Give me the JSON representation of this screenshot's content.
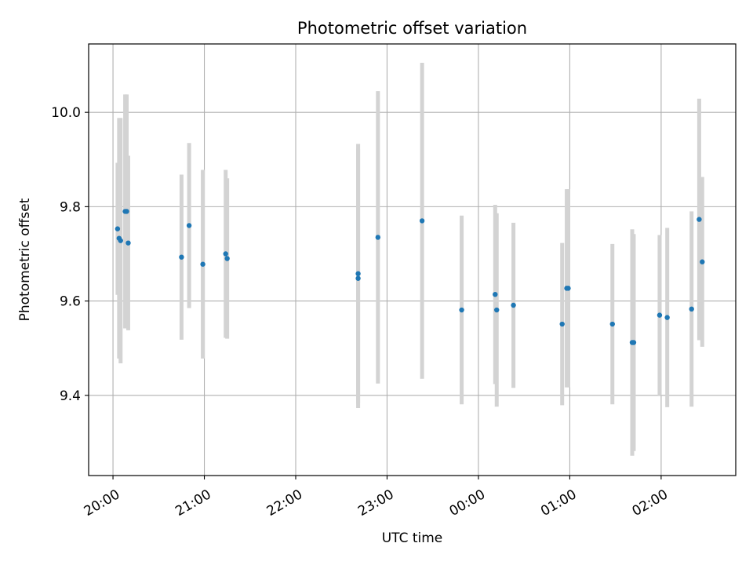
{
  "chart_data": {
    "type": "scatter",
    "title": "Photometric offset variation",
    "xlabel": "UTC time",
    "ylabel": "Photometric offset",
    "grid": true,
    "x_axis": {
      "kind": "time",
      "range": [
        "19:44",
        "02:49"
      ],
      "ticks": [
        "20:00",
        "21:00",
        "22:00",
        "23:00",
        "00:00",
        "01:00",
        "02:00"
      ]
    },
    "y_axis": {
      "range": [
        9.23,
        10.145
      ],
      "ticks": [
        "9.4",
        "9.6",
        "9.8",
        "10.0"
      ]
    },
    "error_bar_color": "#d3d3d3",
    "point_color": "#1f77b4",
    "points": [
      {
        "x": "20:03",
        "y": 9.753,
        "err": 0.14
      },
      {
        "x": "20:04",
        "y": 9.733,
        "err": 0.255
      },
      {
        "x": "20:05",
        "y": 9.728,
        "err": 0.26
      },
      {
        "x": "20:08",
        "y": 9.79,
        "err": 0.248
      },
      {
        "x": "20:09",
        "y": 9.79,
        "err": 0.248
      },
      {
        "x": "20:10",
        "y": 9.723,
        "err": 0.185
      },
      {
        "x": "20:45",
        "y": 9.693,
        "err": 0.175
      },
      {
        "x": "20:50",
        "y": 9.76,
        "err": 0.175
      },
      {
        "x": "20:59",
        "y": 9.678,
        "err": 0.2
      },
      {
        "x": "21:14",
        "y": 9.7,
        "err": 0.178
      },
      {
        "x": "21:15",
        "y": 9.69,
        "err": 0.17
      },
      {
        "x": "22:41",
        "y": 9.658,
        "err": 0.275
      },
      {
        "x": "22:41",
        "y": 9.648,
        "err": 0.275
      },
      {
        "x": "22:54",
        "y": 9.735,
        "err": 0.31
      },
      {
        "x": "23:23",
        "y": 9.77,
        "err": 0.335
      },
      {
        "x": "23:49",
        "y": 9.581,
        "err": 0.2
      },
      {
        "x": "00:11",
        "y": 9.614,
        "err": 0.19
      },
      {
        "x": "00:12",
        "y": 9.581,
        "err": 0.205
      },
      {
        "x": "00:23",
        "y": 9.591,
        "err": 0.175
      },
      {
        "x": "00:55",
        "y": 9.551,
        "err": 0.172
      },
      {
        "x": "00:58",
        "y": 9.627,
        "err": 0.21
      },
      {
        "x": "00:59",
        "y": 9.627,
        "err": 0.21
      },
      {
        "x": "01:28",
        "y": 9.551,
        "err": 0.17
      },
      {
        "x": "01:41",
        "y": 9.512,
        "err": 0.24
      },
      {
        "x": "01:42",
        "y": 9.512,
        "err": 0.23
      },
      {
        "x": "01:59",
        "y": 9.57,
        "err": 0.17
      },
      {
        "x": "02:04",
        "y": 9.565,
        "err": 0.19
      },
      {
        "x": "02:20",
        "y": 9.583,
        "err": 0.207
      },
      {
        "x": "02:25",
        "y": 9.773,
        "err": 0.256
      },
      {
        "x": "02:27",
        "y": 9.683,
        "err": 0.18
      }
    ]
  }
}
